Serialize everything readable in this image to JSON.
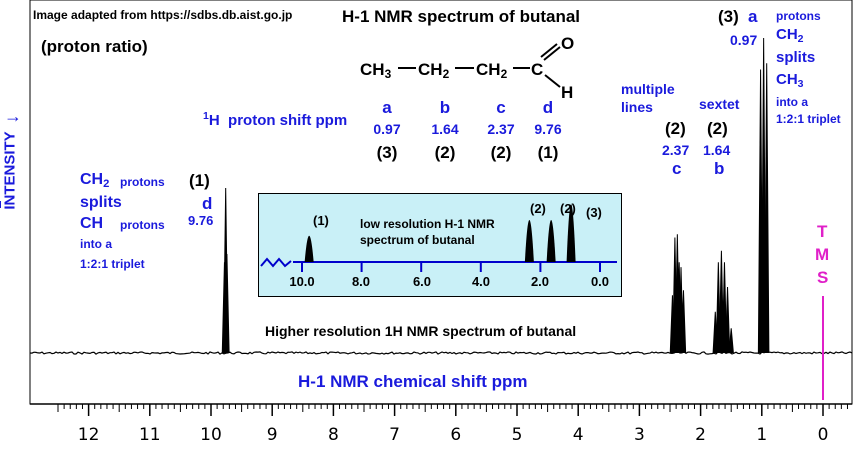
{
  "source_note": "Image adapted from https://sdbs.db.aist.go.jp",
  "proton_ratio_label": "(proton ratio)",
  "title": "H-1 NMR spectrum of butanal",
  "molecule": {
    "ch3": "CH",
    "ch2a": "CH",
    "ch2b": "CH",
    "c": "C",
    "o": "O",
    "h": "H",
    "sub3": "3",
    "sub2": "2"
  },
  "shift_table": {
    "label_sup": "1",
    "label_h": "H",
    "label_rest": "proton shift  ppm",
    "columns": [
      {
        "letter": "a",
        "ppm": "0.97",
        "ratio": "(3)"
      },
      {
        "letter": "b",
        "ppm": "1.64",
        "ratio": "(2)"
      },
      {
        "letter": "c",
        "ppm": "2.37",
        "ratio": "(2)"
      },
      {
        "letter": "d",
        "ppm": "9.76",
        "ratio": "(1)"
      }
    ]
  },
  "y_axis_label": "INTENSITY",
  "annotations": {
    "ald": {
      "ch2": "CH",
      "sub": "2",
      "protons1": "protons",
      "splits": "splits",
      "ch": "CH",
      "protons2": "protons",
      "into": "into a",
      "triplet": "1:2:1 triplet",
      "ratio": "(1)",
      "letter": "d",
      "ppm": "9.76"
    },
    "multiple": {
      "line1": "multiple",
      "line2": "lines",
      "ratio": "(2)",
      "ppm": "2.37",
      "letter": "c"
    },
    "sextet": {
      "label": "sextet",
      "ratio": "(2)",
      "ppm": "1.64",
      "letter": "b"
    },
    "methyl": {
      "ratio_letter": "(3)",
      "letter": "a",
      "ppm": "0.97",
      "protons": "protons",
      "ch2": "CH",
      "sub2": "2",
      "splits": "splits",
      "ch3": "CH",
      "sub3": "3",
      "into": "into a",
      "triplet": "1:2:1 triplet"
    },
    "tms": {
      "t": "T",
      "m": "M",
      "s": "S"
    }
  },
  "inset": {
    "title_line1": "low resolution H-1 NMR",
    "title_line2": "spectrum of butanal",
    "peak_labels": [
      "(1)",
      "(2)",
      "(2)",
      "(3)"
    ],
    "tick_labels": [
      "10.0",
      "8.0",
      "6.0",
      "4.0",
      "2.0",
      "0.0"
    ]
  },
  "higher_res_label": "Higher resolution 1H NMR spectrum of butanal",
  "x_axis_label": "H-1 NMR chemical shift  ppm",
  "chart_data": {
    "type": "line",
    "title": "H-1 NMR spectrum of butanal",
    "xlabel": "H-1 NMR chemical shift  ppm",
    "ylabel": "INTENSITY",
    "x_reversed": true,
    "xlim": [
      12.6,
      -0.4
    ],
    "x_ticks": [
      12,
      11,
      10,
      9,
      8,
      7,
      6,
      5,
      4,
      3,
      2,
      1,
      0
    ],
    "tick_labels": [
      "12",
      "11",
      "10",
      "9",
      "8",
      "7",
      "6",
      "5",
      "4",
      "3",
      "2",
      "1",
      "0"
    ],
    "peaks": [
      {
        "label": "d",
        "shift_ppm": 9.76,
        "proton_ratio": 1,
        "multiplicity": "triplet",
        "lines": [
          9.78,
          9.76,
          9.74
        ],
        "intensities": [
          0.55,
          1.0,
          0.6
        ]
      },
      {
        "label": "c",
        "shift_ppm": 2.37,
        "proton_ratio": 2,
        "multiplicity": "multiple lines",
        "lines": [
          2.46,
          2.42,
          2.38,
          2.35,
          2.32,
          2.28
        ],
        "intensities": [
          0.35,
          0.7,
          0.72,
          0.55,
          0.52,
          0.38
        ]
      },
      {
        "label": "b",
        "shift_ppm": 1.64,
        "proton_ratio": 2,
        "multiplicity": "sextet",
        "lines": [
          1.76,
          1.71,
          1.66,
          1.61,
          1.56,
          1.5
        ],
        "intensities": [
          0.25,
          0.55,
          0.62,
          0.55,
          0.4,
          0.15
        ]
      },
      {
        "label": "a",
        "shift_ppm": 0.97,
        "proton_ratio": 3,
        "multiplicity": "triplet",
        "lines": [
          1.02,
          0.97,
          0.92
        ],
        "intensities": [
          0.9,
          1.0,
          0.92
        ]
      },
      {
        "label": "TMS",
        "shift_ppm": 0.0,
        "proton_ratio": null,
        "multiplicity": "reference",
        "lines": [
          0.0
        ],
        "intensities": [
          0.0
        ]
      }
    ],
    "low_resolution": {
      "xlim": [
        10.0,
        0.0
      ],
      "peaks": [
        {
          "shift_ppm": 9.76,
          "ratio": 1
        },
        {
          "shift_ppm": 2.37,
          "ratio": 2
        },
        {
          "shift_ppm": 1.64,
          "ratio": 2
        },
        {
          "shift_ppm": 0.97,
          "ratio": 3
        }
      ]
    },
    "colors": {
      "trace": "#000000",
      "labels": "#1a1adc",
      "tms": "#e020c8",
      "inset_bg": "#c9f0f7",
      "inset_axis": "#0000cc"
    }
  }
}
